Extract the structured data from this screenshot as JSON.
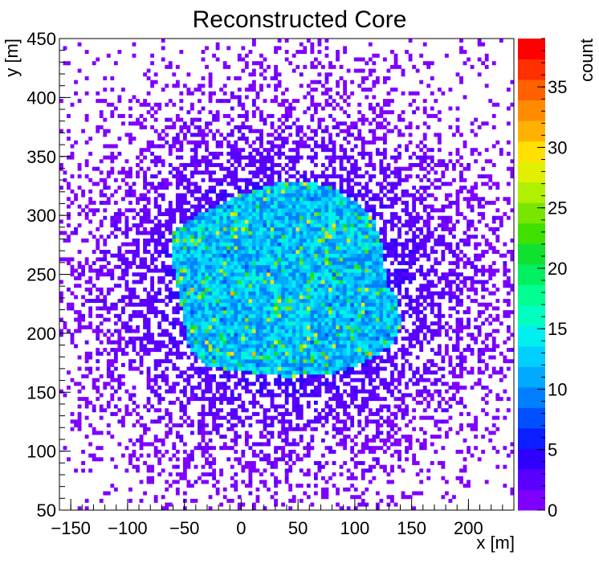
{
  "chart_data": {
    "type": "heatmap",
    "title": "Reconstructed Core",
    "xlabel": "x [m]",
    "ylabel": "y [m]",
    "zlabel": "count",
    "xlim": [
      -160,
      240
    ],
    "ylim": [
      50,
      450
    ],
    "zlim": [
      0,
      39
    ],
    "x_ticks": [
      -150,
      -100,
      -50,
      0,
      50,
      100,
      150,
      200
    ],
    "y_ticks": [
      50,
      100,
      150,
      200,
      250,
      300,
      350,
      400,
      450
    ],
    "z_ticks": [
      0,
      5,
      10,
      15,
      20,
      25,
      30,
      35
    ],
    "x_tick_labels": [
      "−150",
      "−100",
      "−50",
      "0",
      "50",
      "100",
      "150",
      "200"
    ],
    "y_tick_labels": [
      "50",
      "100",
      "150",
      "200",
      "250",
      "300",
      "350",
      "400",
      "450"
    ],
    "z_tick_labels": [
      "0",
      "5",
      "10",
      "15",
      "20",
      "25",
      "30",
      "35"
    ],
    "palette": [
      "#7f00ff",
      "#5a00ff",
      "#3000ff",
      "#0a1eff",
      "#0050ff",
      "#0080ff",
      "#00aaff",
      "#00cfff",
      "#00f0ef",
      "#00ffc0",
      "#00ff90",
      "#00f060",
      "#10e030",
      "#40e000",
      "#7ae600",
      "#b0f000",
      "#e0f000",
      "#ffe000",
      "#ffb000",
      "#ff8c00",
      "#ff6000",
      "#ff3000",
      "#ff0000"
    ],
    "core_region": {
      "outline_xy": [
        [
          -62,
          285
        ],
        [
          -40,
          300
        ],
        [
          0,
          318
        ],
        [
          40,
          330
        ],
        [
          75,
          326
        ],
        [
          100,
          312
        ],
        [
          118,
          295
        ],
        [
          125,
          270
        ],
        [
          128,
          240
        ],
        [
          138,
          230
        ],
        [
          140,
          205
        ],
        [
          132,
          190
        ],
        [
          108,
          175
        ],
        [
          80,
          166
        ],
        [
          40,
          163
        ],
        [
          0,
          168
        ],
        [
          -30,
          172
        ],
        [
          -45,
          185
        ],
        [
          -52,
          220
        ],
        [
          -60,
          260
        ]
      ],
      "level": 12
    },
    "halo_center": [
      40,
      240
    ]
  }
}
